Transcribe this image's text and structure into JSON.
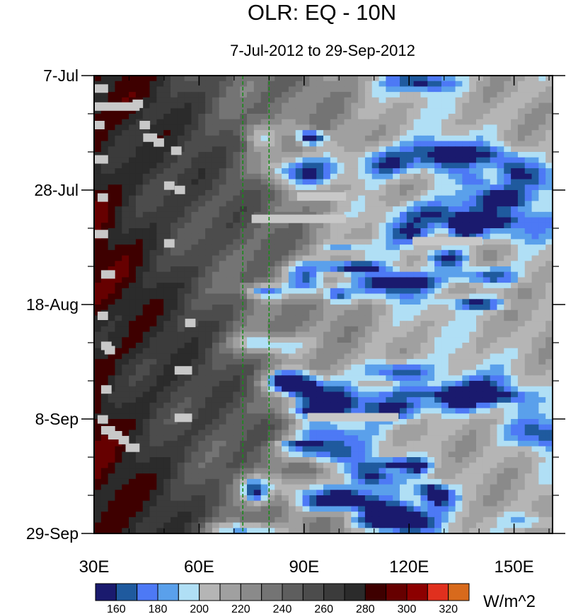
{
  "chart_data": {
    "type": "heatmap",
    "title": "OLR: EQ - 10N",
    "subtitle": "7-Jul-2012 to 29-Sep-2012",
    "x_axis": {
      "range": [
        30,
        161
      ],
      "tick_values": [
        30,
        60,
        90,
        120,
        150
      ],
      "tick_labels": [
        "30E",
        "60E",
        "90E",
        "120E",
        "150E"
      ]
    },
    "y_axis": {
      "range": [
        "2012-07-07",
        "2012-09-29"
      ],
      "tick_values": [
        "2012-07-07",
        "2012-07-28",
        "2012-08-18",
        "2012-09-08",
        "2012-09-29"
      ],
      "tick_labels": [
        "7-Jul",
        "28-Jul",
        "18-Aug",
        "8-Sep",
        "29-Sep"
      ],
      "direction": "time increases downward"
    },
    "reference_lines": {
      "longitudes": [
        72.5,
        80
      ],
      "style": "dashed",
      "color": "#1a8a1a"
    },
    "colorbar": {
      "units": "W/m^2",
      "levels": [
        160,
        170,
        180,
        190,
        200,
        210,
        220,
        230,
        240,
        250,
        260,
        270,
        280,
        290,
        300,
        310,
        320
      ],
      "labels": [
        "160",
        "180",
        "200",
        "220",
        "240",
        "260",
        "280",
        "300",
        "320"
      ],
      "colors": [
        "#1a1a6e",
        "#1f5a9e",
        "#4d79f5",
        "#5aa0eb",
        "#b0dff5",
        "#b5b5b5",
        "#a0a0a0",
        "#8a8a8a",
        "#747474",
        "#5e5e5e",
        "#4c4c4c",
        "#3b3b3b",
        "#2b2b2b",
        "#3e0000",
        "#660000",
        "#8c0000",
        "#e0301e",
        "#d86a1c"
      ]
    },
    "missing_color": "#c8c8c8"
  }
}
